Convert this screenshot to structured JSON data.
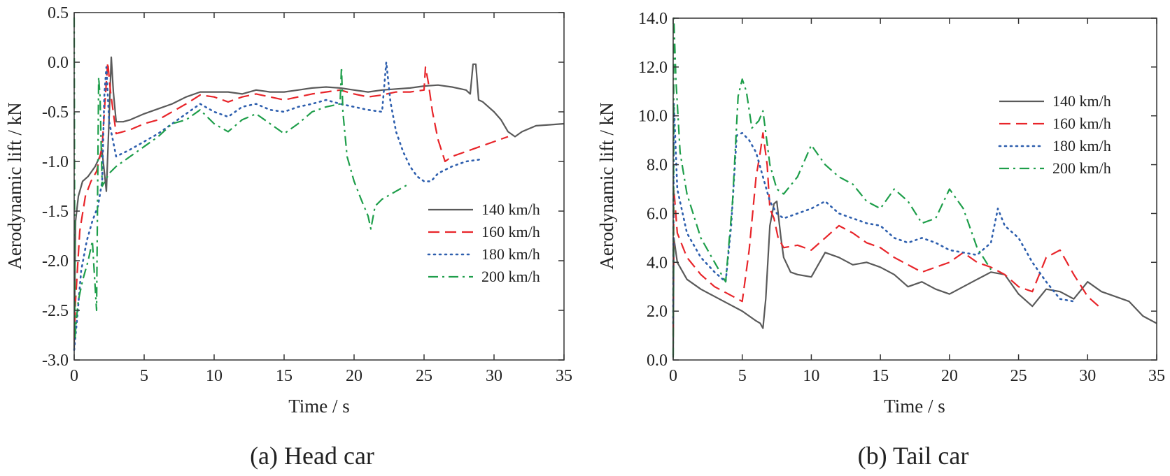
{
  "colors": {
    "s140": "#5a5a5a",
    "s160": "#e8252a",
    "s180": "#2e5fae",
    "s200": "#1e9e4a"
  },
  "chart_data": [
    {
      "type": "line",
      "caption": "(a) Head car",
      "xlabel": "Time / s",
      "ylabel": "Aerodynamic lift / kN",
      "xlim": [
        0,
        35
      ],
      "ylim": [
        -3.0,
        0.5
      ],
      "xticks": [
        0,
        5,
        10,
        15,
        20,
        25,
        30,
        35
      ],
      "yticks": [
        -3.0,
        -2.5,
        -2.0,
        -1.5,
        -1.0,
        -0.5,
        0.0,
        0.5
      ],
      "ytick_labels": [
        "-3.0",
        "-2.5",
        "-2.0",
        "-1.5",
        "-1.0",
        "-0.5",
        "0.0",
        "0.5"
      ],
      "legend_position": "lower-right",
      "series": [
        {
          "name": "140 km/h",
          "style": "solid",
          "color_key": "s140",
          "x": [
            0,
            0.1,
            0.3,
            0.6,
            1.0,
            1.5,
            2.0,
            2.3,
            2.5,
            2.65,
            2.8,
            3.0,
            3.5,
            4,
            5,
            6,
            7,
            8,
            9,
            10,
            11,
            12,
            13,
            14,
            15,
            16,
            17,
            18,
            19,
            20,
            21,
            22,
            23,
            24,
            25,
            26,
            27,
            28,
            28.3,
            28.5,
            28.7,
            28.9,
            29.2,
            30,
            30.5,
            31,
            31.5,
            32,
            32.5,
            33,
            34,
            35
          ],
          "y": [
            -2.9,
            -1.6,
            -1.35,
            -1.2,
            -1.15,
            -1.05,
            -0.9,
            -1.3,
            -0.55,
            0.05,
            -0.3,
            -0.6,
            -0.6,
            -0.58,
            -0.52,
            -0.47,
            -0.42,
            -0.35,
            -0.3,
            -0.3,
            -0.3,
            -0.32,
            -0.28,
            -0.3,
            -0.3,
            -0.28,
            -0.26,
            -0.25,
            -0.26,
            -0.28,
            -0.3,
            -0.28,
            -0.27,
            -0.26,
            -0.24,
            -0.23,
            -0.25,
            -0.28,
            -0.32,
            -0.02,
            -0.02,
            -0.38,
            -0.4,
            -0.5,
            -0.58,
            -0.7,
            -0.75,
            -0.7,
            -0.67,
            -0.64,
            -0.63,
            -0.62
          ]
        },
        {
          "name": "160 km/h",
          "style": "dashed",
          "color_key": "s160",
          "x": [
            0,
            0.1,
            0.4,
            0.8,
            1.2,
            1.6,
            2.0,
            2.2,
            2.4,
            2.6,
            3.0,
            4,
            5,
            6,
            7,
            8,
            9,
            10,
            11,
            12,
            13,
            14,
            15,
            16,
            17,
            18,
            19,
            20,
            21,
            22,
            23,
            24,
            25,
            25.1,
            25.3,
            25.6,
            26,
            26.5,
            27,
            28,
            29,
            30,
            31
          ],
          "y": [
            -2.8,
            -2.4,
            -1.7,
            -1.35,
            -1.2,
            -1.1,
            -0.85,
            -0.4,
            0.0,
            -0.3,
            -0.72,
            -0.68,
            -0.62,
            -0.58,
            -0.5,
            -0.42,
            -0.33,
            -0.35,
            -0.4,
            -0.35,
            -0.32,
            -0.35,
            -0.38,
            -0.35,
            -0.32,
            -0.3,
            -0.28,
            -0.32,
            -0.35,
            -0.33,
            -0.3,
            -0.3,
            -0.28,
            -0.05,
            -0.2,
            -0.5,
            -0.78,
            -1.0,
            -0.95,
            -0.9,
            -0.85,
            -0.8,
            -0.75
          ]
        },
        {
          "name": "180 km/h",
          "style": "dotted",
          "color_key": "s180",
          "x": [
            0,
            0.2,
            0.5,
            0.9,
            1.3,
            1.7,
            2.0,
            2.15,
            2.3,
            2.5,
            3.0,
            4,
            5,
            6,
            7,
            8,
            9,
            10,
            11,
            12,
            13,
            14,
            15,
            16,
            17,
            18,
            19,
            20,
            21,
            22,
            22.3,
            22.6,
            23,
            23.5,
            24,
            24.5,
            25,
            25.5,
            26,
            27,
            28,
            29
          ],
          "y": [
            -2.9,
            -2.6,
            -2.1,
            -1.8,
            -1.6,
            -1.45,
            -1.2,
            -0.35,
            -0.05,
            -0.6,
            -0.95,
            -0.88,
            -0.8,
            -0.72,
            -0.62,
            -0.52,
            -0.42,
            -0.5,
            -0.55,
            -0.45,
            -0.42,
            -0.48,
            -0.5,
            -0.45,
            -0.42,
            -0.38,
            -0.42,
            -0.45,
            -0.48,
            -0.5,
            0.0,
            -0.4,
            -0.7,
            -0.9,
            -1.05,
            -1.15,
            -1.2,
            -1.2,
            -1.12,
            -1.05,
            -1.0,
            -0.98
          ]
        },
        {
          "name": "200 km/h",
          "style": "dashdot",
          "color_key": "s200",
          "x": [
            0,
            0.05,
            0.15,
            0.3,
            0.6,
            1.0,
            1.3,
            1.6,
            1.75,
            1.85,
            2.0,
            2.5,
            3,
            4,
            5,
            6,
            7,
            8,
            9,
            10,
            11,
            12,
            13,
            14,
            15,
            16,
            17,
            18,
            19,
            19.1,
            19.2,
            19.5,
            20,
            20.5,
            21,
            21.2,
            21.5,
            22,
            23,
            24
          ],
          "y": [
            0.45,
            -2.8,
            -2.6,
            -2.4,
            -2.2,
            -2.0,
            -1.8,
            -2.5,
            -0.15,
            -0.35,
            -1.25,
            -1.12,
            -1.05,
            -0.95,
            -0.85,
            -0.75,
            -0.62,
            -0.58,
            -0.48,
            -0.62,
            -0.7,
            -0.58,
            -0.52,
            -0.62,
            -0.72,
            -0.62,
            -0.5,
            -0.45,
            -0.42,
            -0.05,
            -0.5,
            -0.95,
            -1.2,
            -1.38,
            -1.55,
            -1.68,
            -1.45,
            -1.38,
            -1.3,
            -1.22
          ]
        }
      ]
    },
    {
      "type": "line",
      "caption": "(b) Tail car",
      "xlabel": "Time / s",
      "ylabel": "Aerodynamic lift / kN",
      "xlim": [
        0,
        35
      ],
      "ylim": [
        0,
        14
      ],
      "xticks": [
        0,
        5,
        10,
        15,
        20,
        25,
        30,
        35
      ],
      "yticks": [
        0,
        2,
        4,
        6,
        8,
        10,
        12,
        14
      ],
      "ytick_labels": [
        "0.0",
        "2.0",
        "4.0",
        "6.0",
        "8.0",
        "10.0",
        "12.0",
        "14.0"
      ],
      "legend_position": "upper-right",
      "series": [
        {
          "name": "140 km/h",
          "style": "solid",
          "color_key": "s140",
          "x": [
            0,
            0.05,
            0.3,
            1,
            2,
            3,
            4,
            5,
            5.5,
            6,
            6.3,
            6.5,
            6.7,
            7,
            7.3,
            7.5,
            7.8,
            8,
            8.5,
            9,
            10,
            11,
            12,
            13,
            14,
            15,
            16,
            17,
            18,
            19,
            20,
            21,
            22,
            23,
            24,
            25,
            26,
            27,
            28,
            29,
            30,
            31,
            32,
            33,
            34,
            35
          ],
          "y": [
            0.2,
            5.0,
            4.0,
            3.3,
            2.9,
            2.6,
            2.3,
            2.0,
            1.8,
            1.6,
            1.5,
            1.3,
            2.5,
            5.5,
            6.4,
            6.5,
            5.0,
            4.2,
            3.6,
            3.5,
            3.4,
            4.4,
            4.2,
            3.9,
            4.0,
            3.8,
            3.5,
            3.0,
            3.2,
            2.9,
            2.7,
            3.0,
            3.3,
            3.6,
            3.5,
            2.7,
            2.2,
            2.9,
            2.8,
            2.5,
            3.2,
            2.8,
            2.6,
            2.4,
            1.8,
            1.5
          ]
        },
        {
          "name": "160 km/h",
          "style": "dashed",
          "color_key": "s160",
          "x": [
            0,
            0.05,
            0.3,
            1,
            2,
            3,
            4,
            5,
            5.5,
            6,
            6.3,
            6.5,
            6.8,
            7,
            7.3,
            7.6,
            8,
            9,
            10,
            11,
            12,
            13,
            14,
            15,
            16,
            17,
            18,
            19,
            20,
            21,
            22,
            23,
            24,
            25,
            26,
            27,
            28,
            29,
            30,
            31
          ],
          "y": [
            1.0,
            7.0,
            5.2,
            4.2,
            3.5,
            3.0,
            2.7,
            2.4,
            4.5,
            7.5,
            8.5,
            9.3,
            8.0,
            6.2,
            5.8,
            5.0,
            4.6,
            4.7,
            4.5,
            5.0,
            5.5,
            5.2,
            4.8,
            4.6,
            4.2,
            3.9,
            3.6,
            3.8,
            4.0,
            4.4,
            4.0,
            3.8,
            3.5,
            3.0,
            2.8,
            4.2,
            4.5,
            3.5,
            2.6,
            2.1
          ]
        },
        {
          "name": "180 km/h",
          "style": "dotted",
          "color_key": "s180",
          "x": [
            0,
            0.05,
            0.3,
            1,
            2,
            3,
            3.8,
            4.2,
            4.6,
            5.0,
            5.5,
            6,
            6.5,
            7,
            7.5,
            8,
            9,
            10,
            11,
            12,
            13,
            14,
            15,
            16,
            17,
            18,
            19,
            20,
            21,
            22,
            23,
            23.5,
            24,
            25,
            26,
            27,
            28,
            29
          ],
          "y": [
            1.5,
            10.5,
            7.0,
            5.2,
            4.2,
            3.6,
            3.2,
            5.5,
            9.2,
            9.3,
            9.0,
            8.5,
            7.5,
            6.5,
            6.0,
            5.8,
            6.0,
            6.2,
            6.5,
            6.0,
            5.8,
            5.6,
            5.5,
            5.0,
            4.8,
            5.0,
            4.8,
            4.5,
            4.4,
            4.3,
            4.8,
            6.2,
            5.5,
            5.0,
            4.0,
            3.2,
            2.5,
            2.4
          ]
        },
        {
          "name": "200 km/h",
          "style": "dashdot",
          "color_key": "s200",
          "x": [
            0,
            0.05,
            0.2,
            0.5,
            1,
            2,
            3,
            3.8,
            4.3,
            4.7,
            5.0,
            5.3,
            5.7,
            6.2,
            6.5,
            7,
            7.5,
            8,
            9,
            10,
            11,
            12,
            13,
            14,
            15,
            16,
            17,
            18,
            19,
            20,
            21,
            22,
            23
          ],
          "y": [
            0.1,
            14.0,
            11.5,
            8.5,
            6.8,
            5.0,
            4.0,
            3.2,
            6.5,
            10.8,
            11.5,
            11.0,
            9.5,
            9.8,
            10.2,
            8.0,
            7.0,
            6.8,
            7.5,
            8.8,
            8.0,
            7.5,
            7.2,
            6.5,
            6.2,
            7.0,
            6.5,
            5.6,
            5.8,
            7.0,
            6.2,
            4.6,
            3.7
          ]
        }
      ]
    }
  ]
}
